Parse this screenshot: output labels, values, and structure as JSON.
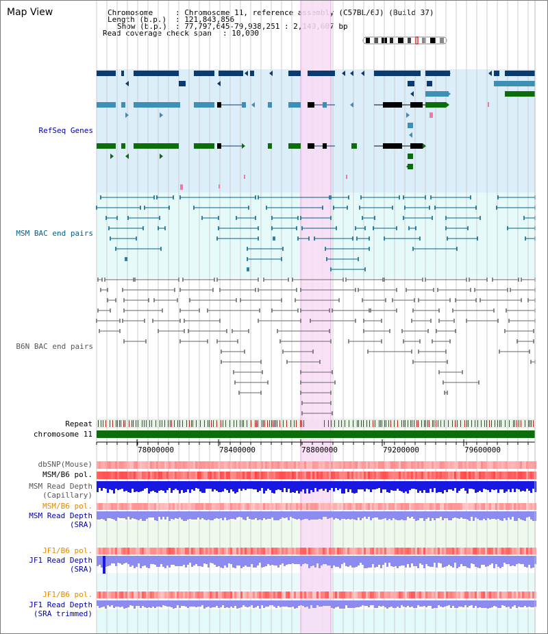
{
  "app": {
    "title": "Map View"
  },
  "info": {
    "chromosome_key": "Chromosome",
    "chromosome_val": ": Chromosome 11, reference assembly (C57BL/6J) (Build 37)",
    "length_key": "Length (b.p.)",
    "length_val": ": 121,843,856",
    "show_key": "Show (b.p.)",
    "show_val": ": 77,797,645-79,938,251 : 2,140,607 bp",
    "coverage_key": "Read coverage check span",
    "coverage_val": ": 10,000"
  },
  "tracks": {
    "refseq": "RefSeq Genes",
    "msm_bac": "MSM BAC end pairs",
    "b6n_bac": "B6N BAC end pairs",
    "repeat": "Repeat",
    "chrom": "chromosome 11",
    "dbsnp": "dbSNP(Mouse)",
    "msm_b6_pol": "MSM/B6 pol.",
    "msm_depth_cap_1": "MSM Read Depth",
    "msm_depth_cap_2": "(Capillary)",
    "msm_b6_pol_2": "MSM/B6 pol.",
    "msm_depth_sra_1": "MSM Read Depth",
    "msm_depth_sra_2": "(SRA)",
    "jf1_pol": "JF1/B6 pol.",
    "jf1_depth_1": "JF1 Read Depth",
    "jf1_depth_2": "(SRA)",
    "jf1_pol_2": "JF1/B6 pol.",
    "jf1_trim_1": "JF1 Read Depth",
    "jf1_trim_2": "(SRA trimmed)"
  },
  "axis": {
    "ticks": [
      "78000000",
      "78400000",
      "78800000",
      "79200000",
      "79600000"
    ]
  },
  "colors": {
    "refseq_bg": "#dbeefa",
    "msm_bg": "#e6fafa",
    "highlight": "#f8dcf4",
    "gene_dark": "#0b3a70",
    "gene_mid": "#3e8fb5",
    "gene_green": "#0b6e0b",
    "chrom_bar": "#0b6e0b",
    "depth_blue": "#1818e0",
    "depth_light": "#8c8cf0"
  }
}
